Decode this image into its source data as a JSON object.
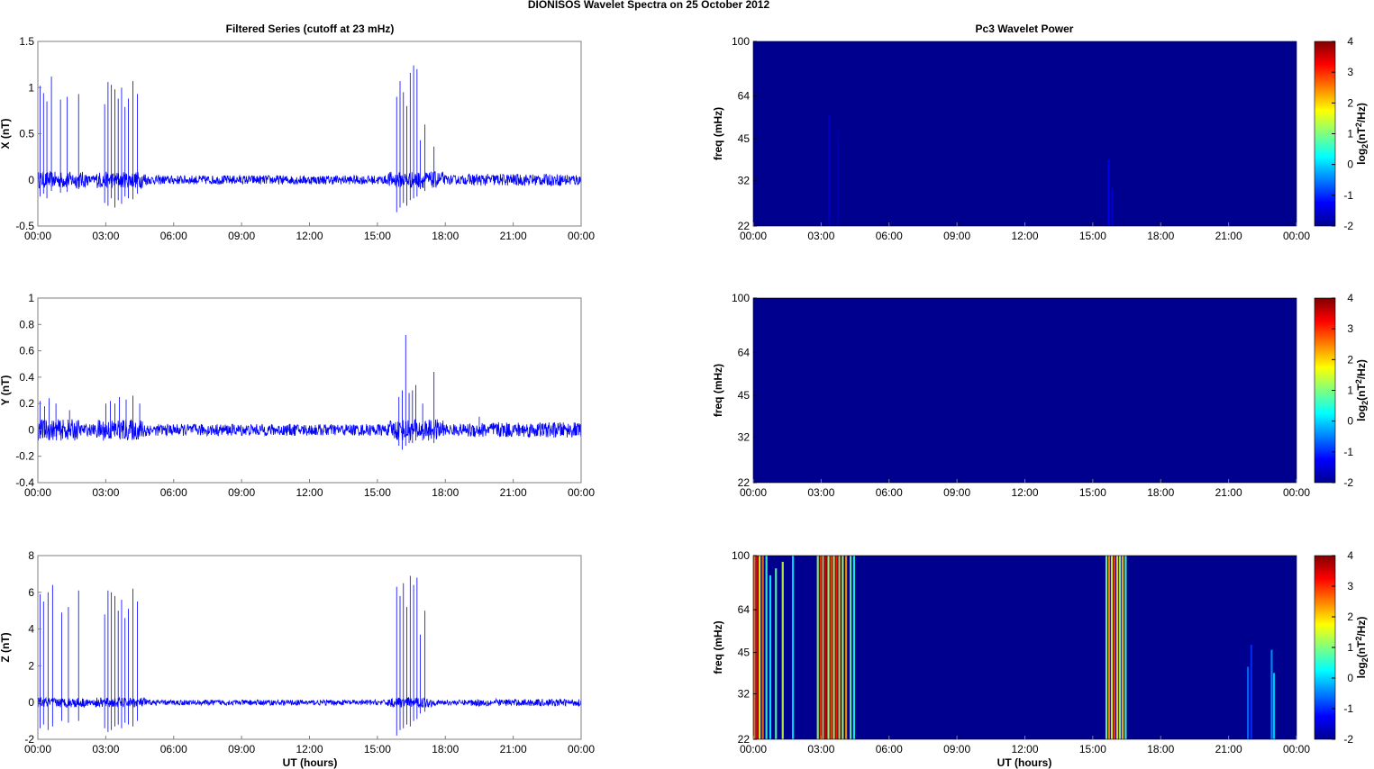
{
  "figure": {
    "suptitle": "DIONISOS Wavelet Spectra on 25 October   2012",
    "left_title": "Filtered Series (cutoff at 23 mHz)",
    "right_title": "Pc3 Wavelet Power",
    "xlabel": "UT (hours)",
    "colorbar_label": "log2(nT2/Hz)"
  },
  "chart_data": [
    {
      "type": "line",
      "id": "x-series",
      "ylabel": "X (nT)",
      "xlim": [
        0,
        24
      ],
      "ylim": [
        -0.5,
        1.5
      ],
      "yticks": [
        "-0.5",
        "0",
        "0.5",
        "1",
        "1.5"
      ],
      "yvals": [
        -0.5,
        0,
        0.5,
        1,
        1.5
      ],
      "xticks": [
        "00:00",
        "03:00",
        "06:00",
        "09:00",
        "12:00",
        "15:00",
        "18:00",
        "21:00",
        "00:00"
      ],
      "color": "#0000ff",
      "noise_amplitude": 0.05,
      "spikes": [
        {
          "t": 0.1,
          "v": 1.02,
          "n": -0.18
        },
        {
          "t": 0.25,
          "v": 0.94,
          "n": -0.15
        },
        {
          "t": 0.4,
          "v": 0.85,
          "n": -0.2
        },
        {
          "t": 0.6,
          "v": 1.12,
          "n": -0.12
        },
        {
          "t": 1.0,
          "v": 0.87,
          "n": -0.14
        },
        {
          "t": 1.3,
          "v": 0.9,
          "n": -0.13
        },
        {
          "t": 1.8,
          "v": 0.93,
          "n": -0.1
        },
        {
          "t": 2.95,
          "v": 0.82,
          "n": -0.25
        },
        {
          "t": 3.1,
          "v": 1.06,
          "n": -0.28
        },
        {
          "t": 3.25,
          "v": 1.03,
          "n": -0.2
        },
        {
          "t": 3.4,
          "v": 0.98,
          "n": -0.3
        },
        {
          "t": 3.55,
          "v": 0.88,
          "n": -0.22
        },
        {
          "t": 3.7,
          "v": 1.0,
          "n": -0.26
        },
        {
          "t": 3.85,
          "v": 0.79,
          "n": -0.18
        },
        {
          "t": 4.0,
          "v": 0.88,
          "n": -0.2
        },
        {
          "t": 4.2,
          "v": 1.07,
          "n": -0.21
        },
        {
          "t": 4.4,
          "v": 0.93,
          "n": -0.15
        },
        {
          "t": 15.85,
          "v": 0.9,
          "n": -0.35
        },
        {
          "t": 16.0,
          "v": 1.07,
          "n": -0.3
        },
        {
          "t": 16.15,
          "v": 0.95,
          "n": -0.25
        },
        {
          "t": 16.3,
          "v": 0.8,
          "n": -0.28
        },
        {
          "t": 16.45,
          "v": 1.16,
          "n": -0.22
        },
        {
          "t": 16.6,
          "v": 1.24,
          "n": -0.2
        },
        {
          "t": 16.75,
          "v": 1.2,
          "n": -0.18
        },
        {
          "t": 16.9,
          "v": 0.43,
          "n": -0.1
        },
        {
          "t": 17.1,
          "v": 0.6,
          "n": -0.12
        },
        {
          "t": 17.5,
          "v": 0.36,
          "n": -0.08
        }
      ]
    },
    {
      "type": "line",
      "id": "y-series",
      "ylabel": "Y (nT)",
      "xlim": [
        0,
        24
      ],
      "ylim": [
        -0.4,
        1
      ],
      "yticks": [
        "-0.4",
        "-0.2",
        "0",
        "0.2",
        "0.4",
        "0.6",
        "0.8",
        "1"
      ],
      "yvals": [
        -0.4,
        -0.2,
        0,
        0.2,
        0.4,
        0.6,
        0.8,
        1
      ],
      "xticks": [
        "00:00",
        "03:00",
        "06:00",
        "09:00",
        "12:00",
        "15:00",
        "18:00",
        "21:00",
        "00:00"
      ],
      "color": "#0000ff",
      "noise_amplitude": 0.045,
      "spikes": [
        {
          "t": 0.1,
          "v": 0.22,
          "n": -0.06
        },
        {
          "t": 0.3,
          "v": 0.18,
          "n": -0.05
        },
        {
          "t": 0.5,
          "v": 0.24,
          "n": -0.06
        },
        {
          "t": 0.8,
          "v": 0.2,
          "n": -0.05
        },
        {
          "t": 1.4,
          "v": 0.15,
          "n": -0.04
        },
        {
          "t": 3.0,
          "v": 0.2,
          "n": -0.05
        },
        {
          "t": 3.2,
          "v": 0.22,
          "n": -0.06
        },
        {
          "t": 3.4,
          "v": 0.2,
          "n": -0.05
        },
        {
          "t": 3.6,
          "v": 0.25,
          "n": -0.06
        },
        {
          "t": 3.9,
          "v": 0.23,
          "n": -0.05
        },
        {
          "t": 4.2,
          "v": 0.26,
          "n": -0.06
        },
        {
          "t": 4.5,
          "v": 0.2,
          "n": -0.05
        },
        {
          "t": 15.95,
          "v": 0.25,
          "n": -0.12
        },
        {
          "t": 16.1,
          "v": 0.3,
          "n": -0.15
        },
        {
          "t": 16.25,
          "v": 0.72,
          "n": -0.12
        },
        {
          "t": 16.4,
          "v": 0.28,
          "n": -0.1
        },
        {
          "t": 16.55,
          "v": 0.3,
          "n": -0.1
        },
        {
          "t": 16.7,
          "v": 0.34,
          "n": -0.08
        },
        {
          "t": 17.0,
          "v": 0.2,
          "n": -0.08
        },
        {
          "t": 17.5,
          "v": 0.44,
          "n": -0.1
        },
        {
          "t": 19.5,
          "v": 0.1,
          "n": -0.05
        }
      ]
    },
    {
      "type": "line",
      "id": "z-series",
      "ylabel": "Z (nT)",
      "xlim": [
        0,
        24
      ],
      "ylim": [
        -2,
        8
      ],
      "yticks": [
        "-2",
        "0",
        "2",
        "4",
        "6",
        "8"
      ],
      "yvals": [
        -2,
        0,
        2,
        4,
        6,
        8
      ],
      "xticks": [
        "00:00",
        "03:00",
        "06:00",
        "09:00",
        "12:00",
        "15:00",
        "18:00",
        "21:00",
        "00:00"
      ],
      "color": "#0000ff",
      "noise_amplitude": 0.15,
      "spikes": [
        {
          "t": 0.1,
          "v": 5.9,
          "n": -1.4
        },
        {
          "t": 0.25,
          "v": 5.5,
          "n": -1.2
        },
        {
          "t": 0.45,
          "v": 6.0,
          "n": -1.5
        },
        {
          "t": 0.65,
          "v": 6.4,
          "n": -1.3
        },
        {
          "t": 1.05,
          "v": 4.9,
          "n": -1.0
        },
        {
          "t": 1.35,
          "v": 5.2,
          "n": -1.1
        },
        {
          "t": 1.8,
          "v": 6.1,
          "n": -1.0
        },
        {
          "t": 2.95,
          "v": 4.8,
          "n": -1.4
        },
        {
          "t": 3.1,
          "v": 6.1,
          "n": -1.6
        },
        {
          "t": 3.25,
          "v": 6.0,
          "n": -1.5
        },
        {
          "t": 3.4,
          "v": 5.8,
          "n": -1.3
        },
        {
          "t": 3.55,
          "v": 5.0,
          "n": -1.2
        },
        {
          "t": 3.7,
          "v": 5.6,
          "n": -1.4
        },
        {
          "t": 3.85,
          "v": 4.6,
          "n": -1.1
        },
        {
          "t": 4.0,
          "v": 5.1,
          "n": -1.2
        },
        {
          "t": 4.2,
          "v": 6.2,
          "n": -1.3
        },
        {
          "t": 4.4,
          "v": 5.5,
          "n": -1.0
        },
        {
          "t": 15.85,
          "v": 6.3,
          "n": -1.8
        },
        {
          "t": 16.0,
          "v": 5.8,
          "n": -1.5
        },
        {
          "t": 16.15,
          "v": 6.5,
          "n": -1.4
        },
        {
          "t": 16.3,
          "v": 5.2,
          "n": -1.2
        },
        {
          "t": 16.45,
          "v": 6.9,
          "n": -1.3
        },
        {
          "t": 16.6,
          "v": 6.4,
          "n": -1.0
        },
        {
          "t": 16.75,
          "v": 6.8,
          "n": -0.9
        },
        {
          "t": 16.9,
          "v": 3.7,
          "n": -0.6
        },
        {
          "t": 17.1,
          "v": 5.0,
          "n": -0.5
        }
      ]
    },
    {
      "type": "heatmap",
      "id": "x-wavelet",
      "ylabel": "freq (mHz)",
      "xlim": [
        0,
        24
      ],
      "ylim": [
        22,
        100
      ],
      "scale": "log",
      "yticks": [
        "22",
        "32",
        "45",
        "64",
        "100"
      ],
      "yvals": [
        22,
        32,
        45,
        64,
        100
      ],
      "xticks": [
        "00:00",
        "03:00",
        "06:00",
        "09:00",
        "12:00",
        "15:00",
        "18:00",
        "21:00",
        "00:00"
      ],
      "background": "#00008f",
      "clim": [
        -2,
        4
      ],
      "cticks": [
        "-2",
        "-1",
        "0",
        "1",
        "2",
        "3",
        "4"
      ],
      "streaks": [
        {
          "t": 3.35,
          "f0": 22,
          "f1": 55,
          "level": -1.6
        },
        {
          "t": 3.75,
          "f0": 22,
          "f1": 48,
          "level": -1.7
        },
        {
          "t": 15.7,
          "f0": 22,
          "f1": 38,
          "level": -1.3
        },
        {
          "t": 15.85,
          "f0": 22,
          "f1": 30,
          "level": -1.5
        }
      ]
    },
    {
      "type": "heatmap",
      "id": "y-wavelet",
      "ylabel": "freq (mHz)",
      "xlim": [
        0,
        24
      ],
      "ylim": [
        22,
        100
      ],
      "scale": "log",
      "yticks": [
        "22",
        "32",
        "45",
        "64",
        "100"
      ],
      "yvals": [
        22,
        32,
        45,
        64,
        100
      ],
      "xticks": [
        "00:00",
        "03:00",
        "06:00",
        "09:00",
        "12:00",
        "15:00",
        "18:00",
        "21:00",
        "00:00"
      ],
      "background": "#00008f",
      "clim": [
        -2,
        4
      ],
      "cticks": [
        "-2",
        "-1",
        "0",
        "1",
        "2",
        "3",
        "4"
      ],
      "streaks": []
    },
    {
      "type": "heatmap",
      "id": "z-wavelet",
      "ylabel": "freq (mHz)",
      "xlim": [
        0,
        24
      ],
      "ylim": [
        22,
        100
      ],
      "scale": "log",
      "yticks": [
        "22",
        "32",
        "45",
        "64",
        "100"
      ],
      "yvals": [
        22,
        32,
        45,
        64,
        100
      ],
      "xticks": [
        "00:00",
        "03:00",
        "06:00",
        "09:00",
        "12:00",
        "15:00",
        "18:00",
        "21:00",
        "00:00"
      ],
      "background": "#00008f",
      "clim": [
        -2,
        4
      ],
      "cticks": [
        "-2",
        "-1",
        "0",
        "1",
        "2",
        "3",
        "4"
      ],
      "streaks": [
        {
          "t": 0.05,
          "f0": 22,
          "f1": 100,
          "level": 2.5
        },
        {
          "t": 0.15,
          "f0": 22,
          "f1": 100,
          "level": 3.3
        },
        {
          "t": 0.28,
          "f0": 22,
          "f1": 100,
          "level": 1.8
        },
        {
          "t": 0.42,
          "f0": 22,
          "f1": 100,
          "level": 2.6
        },
        {
          "t": 0.58,
          "f0": 22,
          "f1": 100,
          "level": 0.6
        },
        {
          "t": 0.75,
          "f0": 22,
          "f1": 85,
          "level": 0.2
        },
        {
          "t": 1.0,
          "f0": 22,
          "f1": 90,
          "level": 0.8
        },
        {
          "t": 1.3,
          "f0": 22,
          "f1": 95,
          "level": 1.4
        },
        {
          "t": 1.75,
          "f0": 22,
          "f1": 100,
          "level": 0.1
        },
        {
          "t": 2.85,
          "f0": 22,
          "f1": 100,
          "level": 1.2
        },
        {
          "t": 2.97,
          "f0": 22,
          "f1": 100,
          "level": 3.0
        },
        {
          "t": 3.08,
          "f0": 22,
          "f1": 100,
          "level": 2.2
        },
        {
          "t": 3.2,
          "f0": 22,
          "f1": 100,
          "level": 3.4
        },
        {
          "t": 3.32,
          "f0": 22,
          "f1": 100,
          "level": 1.6
        },
        {
          "t": 3.44,
          "f0": 22,
          "f1": 100,
          "level": 2.8
        },
        {
          "t": 3.56,
          "f0": 22,
          "f1": 100,
          "level": 1.9
        },
        {
          "t": 3.68,
          "f0": 22,
          "f1": 100,
          "level": 3.1
        },
        {
          "t": 3.8,
          "f0": 22,
          "f1": 100,
          "level": 2.0
        },
        {
          "t": 3.95,
          "f0": 22,
          "f1": 100,
          "level": 1.3
        },
        {
          "t": 4.1,
          "f0": 22,
          "f1": 100,
          "level": 2.4
        },
        {
          "t": 4.3,
          "f0": 22,
          "f1": 100,
          "level": 0.9
        },
        {
          "t": 4.45,
          "f0": 22,
          "f1": 100,
          "level": 0.4
        },
        {
          "t": 15.6,
          "f0": 22,
          "f1": 100,
          "level": 1.0
        },
        {
          "t": 15.72,
          "f0": 22,
          "f1": 100,
          "level": 2.4
        },
        {
          "t": 15.84,
          "f0": 22,
          "f1": 100,
          "level": 1.6
        },
        {
          "t": 15.96,
          "f0": 22,
          "f1": 100,
          "level": 2.9
        },
        {
          "t": 16.08,
          "f0": 22,
          "f1": 100,
          "level": 1.9
        },
        {
          "t": 16.2,
          "f0": 22,
          "f1": 100,
          "level": 1.2
        },
        {
          "t": 16.32,
          "f0": 22,
          "f1": 100,
          "level": 2.1
        },
        {
          "t": 16.45,
          "f0": 22,
          "f1": 100,
          "level": 0.7
        },
        {
          "t": 21.85,
          "f0": 22,
          "f1": 40,
          "level": -0.6
        },
        {
          "t": 22.0,
          "f0": 22,
          "f1": 48,
          "level": -1.0
        },
        {
          "t": 22.9,
          "f0": 22,
          "f1": 46,
          "level": -0.4
        },
        {
          "t": 23.0,
          "f0": 22,
          "f1": 38,
          "level": 0.0
        }
      ]
    }
  ]
}
